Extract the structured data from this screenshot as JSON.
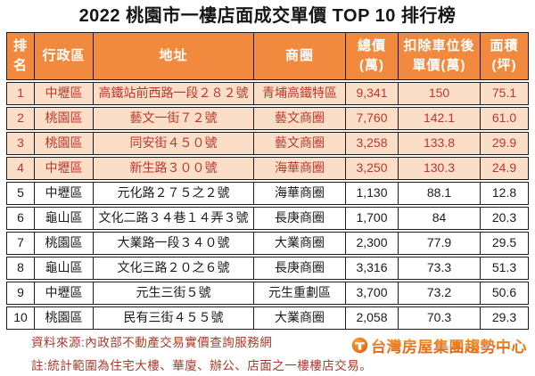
{
  "title": "2022 桃園市一樓店面成交單價 TOP 10 排行榜",
  "colors": {
    "header_bg": "#f18a3e",
    "border": "#1c1c1c",
    "highlight_bg": "#fbdec8",
    "highlight_text": "#b83a2e",
    "footer_text": "#a63a2a",
    "logo_orange": "#ee7317"
  },
  "table": {
    "headers": [
      {
        "id": "rank",
        "lines": [
          "排",
          "名"
        ]
      },
      {
        "id": "district",
        "lines": [
          "行政區"
        ]
      },
      {
        "id": "address",
        "lines": [
          "地址"
        ]
      },
      {
        "id": "area",
        "lines": [
          "商圈"
        ]
      },
      {
        "id": "total_price",
        "lines": [
          "總價",
          "(萬)"
        ]
      },
      {
        "id": "unit_price",
        "lines": [
          "扣除車位後",
          "單價(萬)"
        ]
      },
      {
        "id": "size",
        "lines": [
          "面積",
          "(坪)"
        ]
      }
    ],
    "rows": [
      {
        "rank": "1",
        "district": "中壢區",
        "address": "高鐵站前西路一段２８２號",
        "area": "青埔高鐵特區",
        "total": "9,341",
        "unit": "150",
        "size": "75.1",
        "highlight": true
      },
      {
        "rank": "2",
        "district": "桃園區",
        "address": "藝文一街７２號",
        "area": "藝文商圈",
        "total": "7,760",
        "unit": "142.1",
        "size": "61.0",
        "highlight": true
      },
      {
        "rank": "3",
        "district": "桃園區",
        "address": "同安街４５０號",
        "area": "藝文商圈",
        "total": "3,258",
        "unit": "133.8",
        "size": "29.9",
        "highlight": true
      },
      {
        "rank": "4",
        "district": "中壢區",
        "address": "新生路３００號",
        "area": "海華商圈",
        "total": "3,250",
        "unit": "130.3",
        "size": "24.9",
        "highlight": true
      },
      {
        "rank": "5",
        "district": "中壢區",
        "address": "元化路２７５之２號",
        "area": "海華商圈",
        "total": "1,130",
        "unit": "88.1",
        "size": "12.8",
        "highlight": false
      },
      {
        "rank": "6",
        "district": "龜山區",
        "address": "文化二路３４巷１４弄３號",
        "area": "長庚商圈",
        "total": "1,700",
        "unit": "84",
        "size": "20.3",
        "highlight": false
      },
      {
        "rank": "7",
        "district": "桃園區",
        "address": "大業路一段３４０號",
        "area": "大業商圈",
        "total": "2,300",
        "unit": "77.9",
        "size": "29.5",
        "highlight": false
      },
      {
        "rank": "8",
        "district": "龜山區",
        "address": "文化三路２０之６號",
        "area": "長庚商圈",
        "total": "3,316",
        "unit": "73.3",
        "size": "51.3",
        "highlight": false
      },
      {
        "rank": "9",
        "district": "中壢區",
        "address": "元生三街５號",
        "area": "元生重劃區",
        "total": "3,700",
        "unit": "73.2",
        "size": "50.6",
        "highlight": false
      },
      {
        "rank": "10",
        "district": "桃園區",
        "address": "民有三街４５５號",
        "area": "大業商圈",
        "total": "2,058",
        "unit": "70.3",
        "size": "29.3",
        "highlight": false
      }
    ]
  },
  "footer": {
    "source": "資料來源:內政部不動產交易實價查詢服務網",
    "note": "註:統計範圍為住宅大樓、華廈、辦公、店面之一樓樓店交易。",
    "logo_text": "台灣房屋集團趨勢中心"
  }
}
